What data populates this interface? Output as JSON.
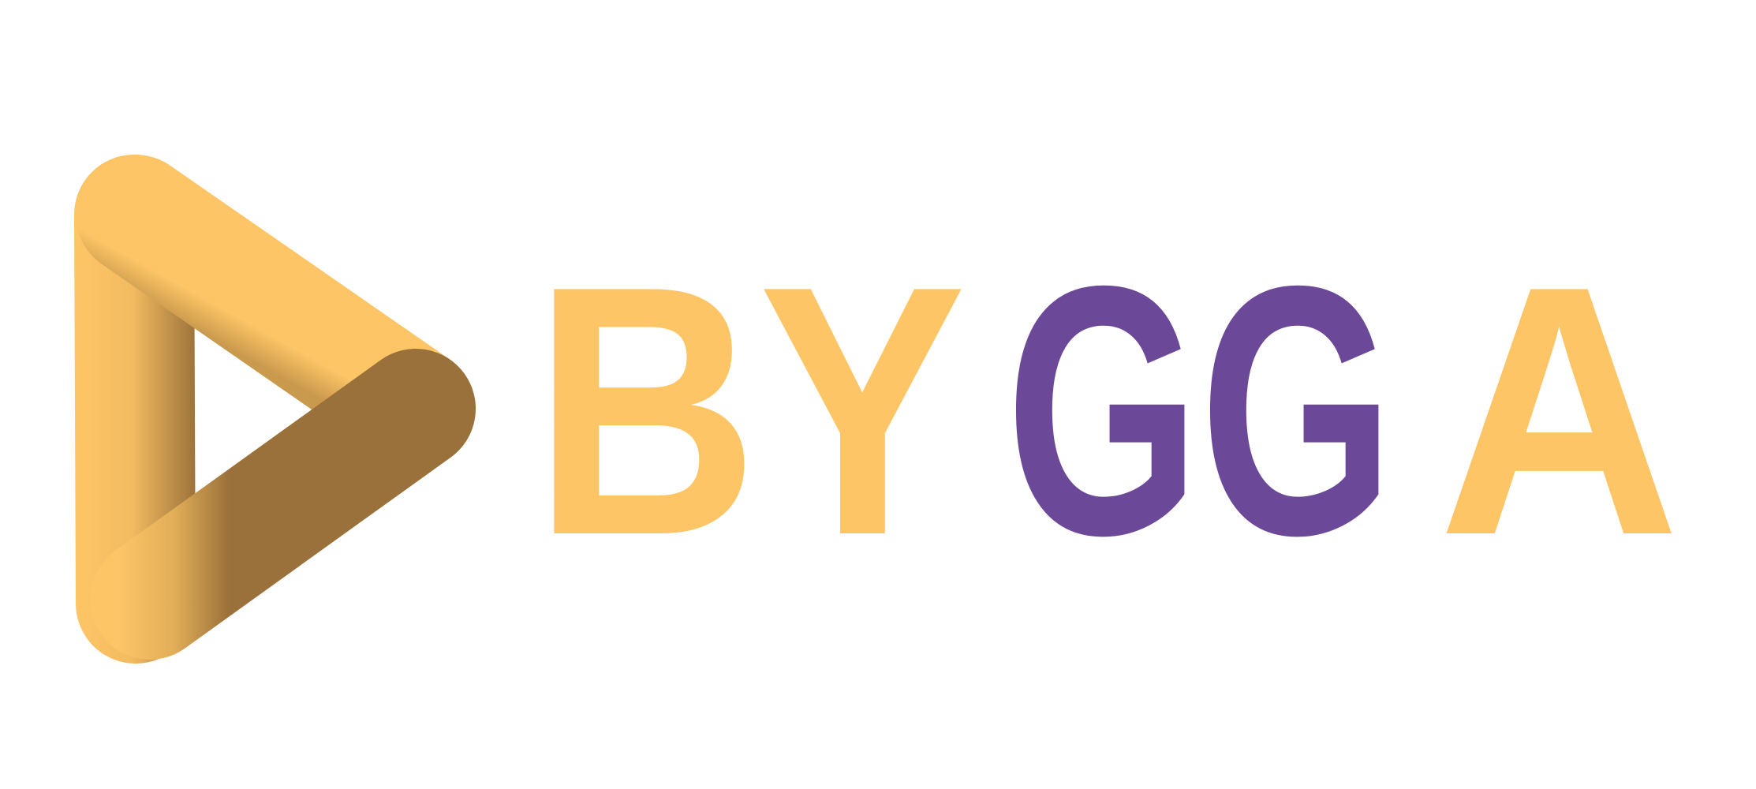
{
  "logo": {
    "parts": [
      {
        "text": "BY",
        "color": "#FDC566"
      },
      {
        "text": "GG",
        "color": "#6C4898"
      },
      {
        "text": "A",
        "color": "#FDC566"
      }
    ]
  }
}
